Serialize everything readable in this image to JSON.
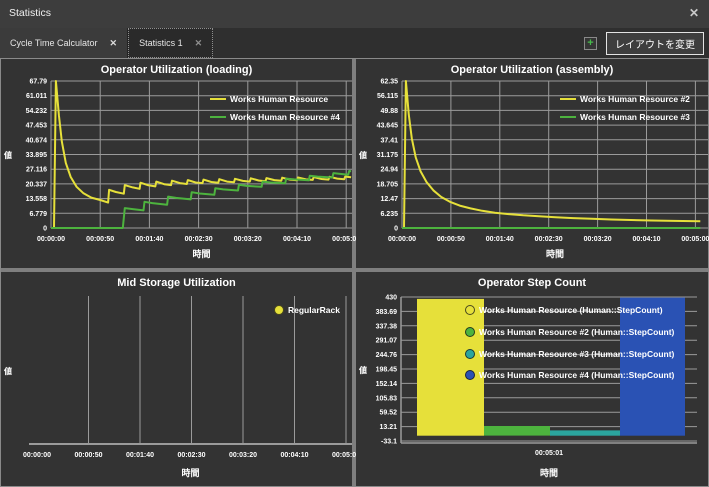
{
  "window": {
    "title": "Statistics",
    "close": "✕"
  },
  "tab_bar": {
    "tabs": [
      {
        "label": "Cycle Time Calculator",
        "close": "✕"
      },
      {
        "label": "Statistics 1",
        "close": "✕",
        "active": true
      }
    ],
    "add_button": "+",
    "layout_button": "レイアウトを変更"
  },
  "palette": {
    "yellow": "#e6e03a",
    "green": "#4db33e",
    "teal": "#2ba59e",
    "blue": "#2a52b4",
    "grid": "#9b9b9b",
    "panel_bg": "#333333",
    "splitter": "#7f7f7f",
    "text": "#ffffff"
  },
  "chart_data": [
    {
      "type": "line",
      "title": "Operator Utilization (loading)",
      "xlabel": "時間",
      "ylabel": "値",
      "ymin": 0,
      "ymax": 67.79,
      "yticks": [
        67.79,
        61.011,
        54.232,
        47.453,
        40.674,
        33.895,
        27.116,
        20.337,
        13.558,
        6.779,
        0
      ],
      "xticks": [
        "00:00:00",
        "00:00:50",
        "00:01:40",
        "00:02:30",
        "00:03:20",
        "00:04:10",
        "00:05:00"
      ],
      "xmax_seconds": 305,
      "grid": true,
      "legend_position": "inside-top-right",
      "series": [
        {
          "name": "Works Human Resource",
          "color": "#e6e03a",
          "points": [
            [
              0,
              0
            ],
            [
              3,
              0
            ],
            [
              5,
              67.79
            ],
            [
              8,
              52
            ],
            [
              11,
              40
            ],
            [
              15,
              30
            ],
            [
              20,
              23.5
            ],
            [
              26,
              19
            ],
            [
              33,
              16
            ],
            [
              41,
              14
            ],
            [
              50,
              12.9
            ],
            [
              58,
              11.7
            ],
            [
              59,
              17.6
            ],
            [
              66,
              16.6
            ],
            [
              74,
              15.8
            ],
            [
              75,
              19.8
            ],
            [
              83,
              18.7
            ],
            [
              90,
              18.1
            ],
            [
              91,
              20.9
            ],
            [
              99,
              19.7
            ],
            [
              106,
              19.2
            ],
            [
              107,
              21.4
            ],
            [
              115,
              20.2
            ],
            [
              122,
              19.8
            ],
            [
              123,
              21.8
            ],
            [
              131,
              20.7
            ],
            [
              138,
              20.3
            ],
            [
              139,
              22.1
            ],
            [
              147,
              21.0
            ],
            [
              154,
              20.7
            ],
            [
              155,
              22.3
            ],
            [
              163,
              21.2
            ],
            [
              170,
              20.9
            ],
            [
              171,
              22.5
            ],
            [
              179,
              21.4
            ],
            [
              186,
              21.1
            ],
            [
              187,
              22.7
            ],
            [
              195,
              21.7
            ],
            [
              202,
              21.4
            ],
            [
              203,
              22.9
            ],
            [
              211,
              21.9
            ],
            [
              218,
              21.6
            ],
            [
              219,
              23.0
            ],
            [
              227,
              22.1
            ],
            [
              234,
              21.8
            ],
            [
              235,
              23.2
            ],
            [
              243,
              22.3
            ],
            [
              250,
              22.0
            ],
            [
              251,
              23.3
            ],
            [
              259,
              22.4
            ],
            [
              266,
              22.2
            ],
            [
              267,
              23.5
            ],
            [
              275,
              22.6
            ],
            [
              282,
              22.3
            ],
            [
              283,
              23.6
            ],
            [
              291,
              22.8
            ],
            [
              298,
              22.5
            ],
            [
              299,
              23.7
            ],
            [
              305,
              23.4
            ]
          ]
        },
        {
          "name": "Works Human Resource #4",
          "color": "#4db33e",
          "points": [
            [
              0,
              0
            ],
            [
              73,
              0
            ],
            [
              75,
              9.2
            ],
            [
              83,
              8.7
            ],
            [
              94,
              8.1
            ],
            [
              95,
              12.1
            ],
            [
              103,
              11.5
            ],
            [
              118,
              10.7
            ],
            [
              119,
              14.5
            ],
            [
              127,
              13.9
            ],
            [
              142,
              13.2
            ],
            [
              143,
              16.5
            ],
            [
              151,
              15.9
            ],
            [
              166,
              15.3
            ],
            [
              167,
              18.3
            ],
            [
              175,
              17.8
            ],
            [
              190,
              17.3
            ],
            [
              191,
              19.9
            ],
            [
              199,
              19.4
            ],
            [
              214,
              19.0
            ],
            [
              215,
              21.4
            ],
            [
              223,
              21.0
            ],
            [
              238,
              20.6
            ],
            [
              239,
              22.8
            ],
            [
              247,
              22.4
            ],
            [
              262,
              22.0
            ],
            [
              263,
              24.1
            ],
            [
              271,
              23.7
            ],
            [
              286,
              23.3
            ],
            [
              287,
              25.3
            ],
            [
              295,
              24.9
            ],
            [
              302,
              24.6
            ],
            [
              303,
              26.3
            ],
            [
              305,
              26.2
            ]
          ]
        }
      ]
    },
    {
      "type": "line",
      "title": "Operator Utilization (assembly)",
      "xlabel": "時間",
      "ylabel": "値",
      "ymin": 0,
      "ymax": 62.35,
      "yticks": [
        62.35,
        56.115,
        49.88,
        43.645,
        37.41,
        31.175,
        24.94,
        18.705,
        12.47,
        6.235,
        0
      ],
      "xticks": [
        "00:00:00",
        "00:00:50",
        "00:01:40",
        "00:02:30",
        "00:03:20",
        "00:04:10",
        "00:05:00"
      ],
      "xmax_seconds": 305,
      "grid": true,
      "legend_position": "inside-top-right",
      "series": [
        {
          "name": "Works Human Resource #2",
          "color": "#e6e03a",
          "points": [
            [
              0,
              0
            ],
            [
              2,
              0
            ],
            [
              4,
              62.35
            ],
            [
              7,
              48
            ],
            [
              10,
              38
            ],
            [
              14,
              30
            ],
            [
              19,
              24
            ],
            [
              25,
              19.5
            ],
            [
              32,
              16
            ],
            [
              40,
              13.2
            ],
            [
              49,
              11.1
            ],
            [
              59,
              9.5
            ],
            [
              70,
              8.3
            ],
            [
              82,
              7.3
            ],
            [
              95,
              6.5
            ],
            [
              109,
              5.9
            ],
            [
              124,
              5.4
            ],
            [
              140,
              5.0
            ],
            [
              157,
              4.6
            ],
            [
              175,
              4.2
            ],
            [
              194,
              3.9
            ],
            [
              214,
              3.6
            ],
            [
              234,
              3.4
            ],
            [
              255,
              3.2
            ],
            [
              278,
              3.0
            ],
            [
              305,
              2.9
            ]
          ]
        },
        {
          "name": "Works Human Resource #3",
          "color": "#4db33e",
          "points": [
            [
              0,
              0
            ],
            [
              305,
              0
            ]
          ]
        }
      ]
    },
    {
      "type": "line",
      "title": "Mid Storage Utilization",
      "xlabel": "時間",
      "ylabel": "値",
      "yticks": [],
      "xticks": [
        "00:00:00",
        "00:00:50",
        "00:01:40",
        "00:02:30",
        "00:03:20",
        "00:04:10",
        "00:05:00"
      ],
      "xmax_seconds": 305,
      "grid": true,
      "legend_position": "inside-top-right",
      "series": [
        {
          "name": "RegularRack",
          "color": "#e6e03a",
          "points": []
        }
      ]
    },
    {
      "type": "bar",
      "title": "Operator Step Count",
      "xlabel": "時間",
      "ylabel": "値",
      "ymin": -33.1,
      "ymax": 430,
      "yticks": [
        430,
        383.69,
        337.38,
        291.07,
        244.76,
        198.45,
        152.14,
        105.83,
        59.52,
        13.21,
        -33.1
      ],
      "xticks": [
        "00:05:01"
      ],
      "grid": true,
      "legend_position": "inside-top-left",
      "bars": [
        {
          "name": "Works Human Resource (Human::StepCount)",
          "color": "#e6e03a",
          "value": 424
        },
        {
          "name": "Works Human Resource #2 (Human::StepCount)",
          "color": "#4db33e",
          "value": 15
        },
        {
          "name": "Works Human Resource #3 (Human::StepCount)",
          "color": "#2ba59e",
          "value": 1
        },
        {
          "name": "Works Human Resource #4 (Human::StepCount)",
          "color": "#2a52b4",
          "value": 428
        }
      ]
    }
  ]
}
